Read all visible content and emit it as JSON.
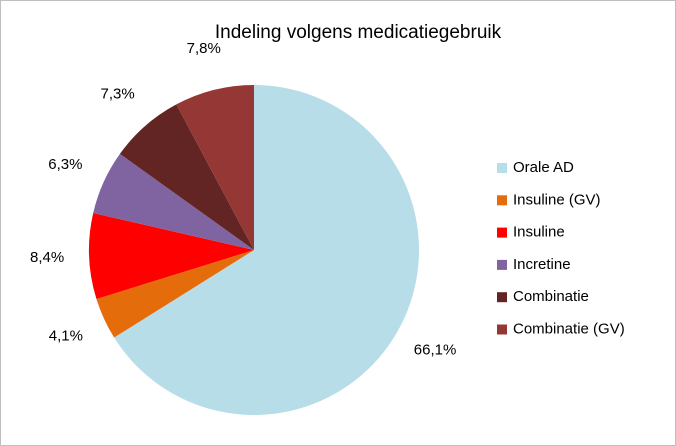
{
  "chart_data": {
    "type": "pie",
    "title": "Indeling volgens medicatiegebruik",
    "categories": [
      "Orale AD",
      "Insuline (GV)",
      "Insuline",
      "Incretine",
      "Combinatie",
      "Combinatie (GV)"
    ],
    "values": [
      66.1,
      4.1,
      8.4,
      6.3,
      7.3,
      7.8
    ],
    "value_labels": [
      "66,1%",
      "4,1%",
      "8,4%",
      "6,3%",
      "7,3%",
      "7,8%"
    ],
    "colors": [
      "#b7dde8",
      "#e46c0a",
      "#ff0000",
      "#8064a2",
      "#632523",
      "#953735"
    ],
    "legend": "right"
  }
}
